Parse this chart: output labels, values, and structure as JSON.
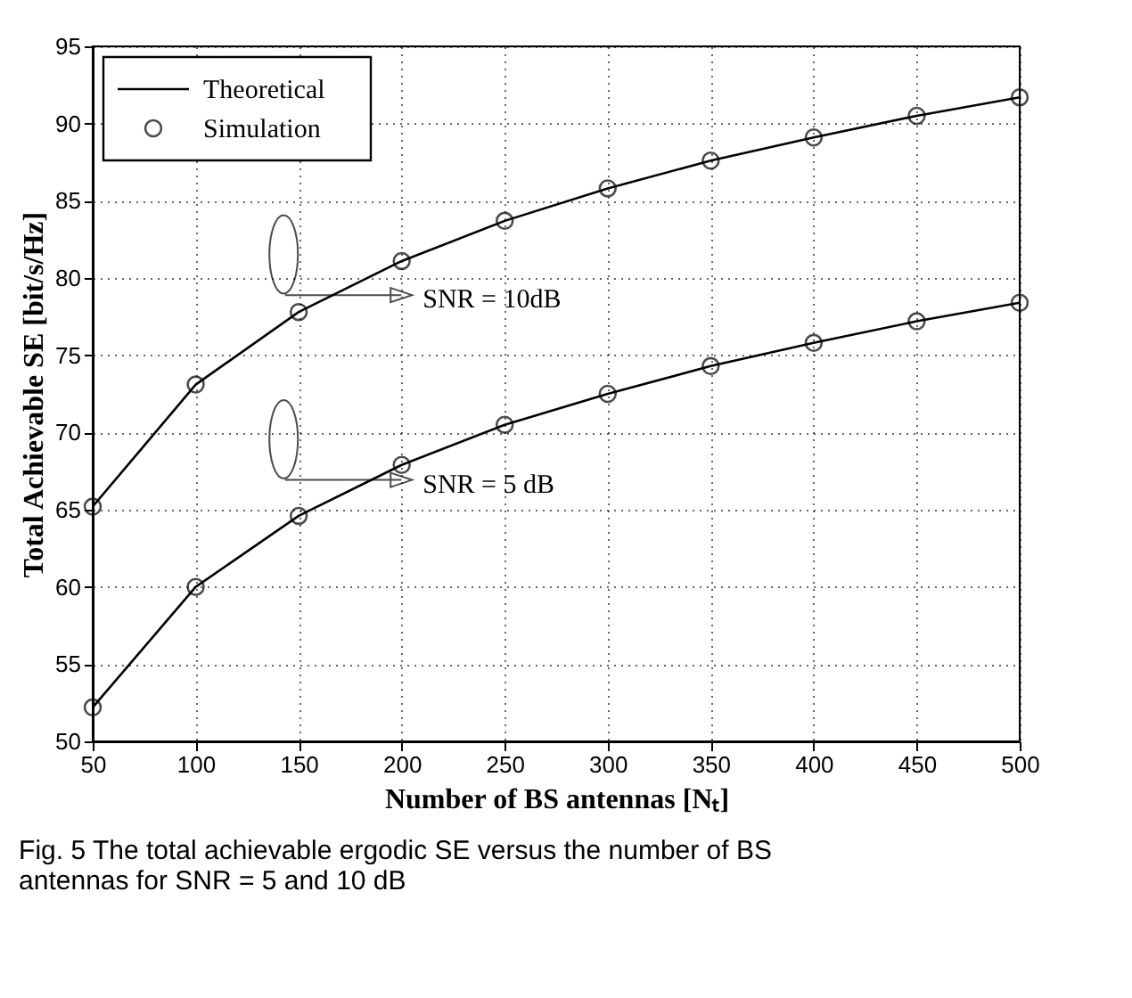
{
  "chart_data": {
    "type": "line",
    "x": [
      50,
      100,
      150,
      200,
      250,
      300,
      350,
      400,
      450,
      500
    ],
    "xlabel": "Number of BS antennas [Nₜ]",
    "ylabel": "Total Achievable SE [bit/s/Hz]",
    "xlim": [
      50,
      500
    ],
    "xticks": [
      50,
      100,
      150,
      200,
      250,
      300,
      350,
      400,
      450,
      500
    ],
    "ylim": [
      50,
      95
    ],
    "yticks": [
      50,
      55,
      60,
      65,
      70,
      75,
      80,
      85,
      90,
      95
    ],
    "grid": true,
    "legend": "top left",
    "series": [
      {
        "name": "Theoretical",
        "color": "#000000",
        "line_style": "solid",
        "marker": "none",
        "values": [
          65.2,
          73.1,
          77.8,
          81.1,
          83.7,
          85.8,
          87.6,
          89.1,
          90.5,
          91.7
        ]
      },
      {
        "color": "#000000",
        "line_style": "solid",
        "marker": "none",
        "values": [
          52.2,
          60.0,
          64.6,
          67.9,
          70.5,
          72.5,
          74.3,
          75.8,
          77.2,
          78.4
        ]
      },
      {
        "name": "Simulation",
        "type": "scatter",
        "color": "#000000",
        "marker": "circle",
        "values": [
          65.2,
          73.1,
          77.8,
          81.1,
          83.7,
          85.8,
          87.6,
          89.1,
          90.5,
          91.7
        ]
      },
      {
        "type": "scatter",
        "color": "#000000",
        "marker": "circle",
        "values": [
          52.2,
          60.0,
          64.6,
          67.9,
          70.5,
          72.5,
          74.3,
          75.8,
          77.2,
          78.4
        ]
      }
    ],
    "annotations": [
      "SNR = 10dB",
      "SNR = 5 dB",
      "Fig. 5 The total achievable ergodic SE versus the number of BS antennas for SNR = 5 and 10 dB"
    ]
  }
}
